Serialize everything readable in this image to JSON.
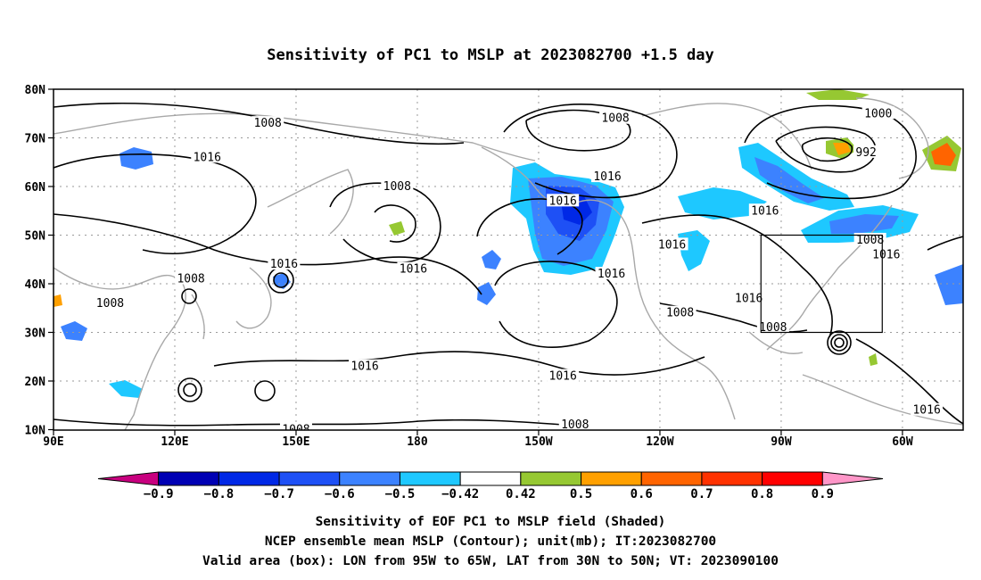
{
  "title": "Sensitivity of PC1 to MSLP at 2023082700 +1.5 day",
  "map": {
    "lat_labels": [
      "80N",
      "70N",
      "60N",
      "50N",
      "40N",
      "30N",
      "20N",
      "10N"
    ],
    "lon_labels": [
      "90E",
      "120E",
      "150E",
      "180",
      "150W",
      "120W",
      "90W",
      "60W"
    ],
    "valid_box": {
      "lon_from": "95W",
      "lon_to": "65W",
      "lat_from": "30N",
      "lat_to": "50N"
    },
    "contour_labels": [
      {
        "text": "1008",
        "lon": 143,
        "lat": 73
      },
      {
        "text": "1016",
        "lon": 128,
        "lat": 66
      },
      {
        "text": "1008",
        "lon": 175,
        "lat": 60
      },
      {
        "text": "1008",
        "lon": 229,
        "lat": 74
      },
      {
        "text": "1016",
        "lon": 227,
        "lat": 62
      },
      {
        "text": "1016",
        "lon": 216,
        "lat": 57
      },
      {
        "text": "1000",
        "lon": 294,
        "lat": 75
      },
      {
        "text": "992",
        "lon": 291,
        "lat": 67
      },
      {
        "text": "1016",
        "lon": 266,
        "lat": 55
      },
      {
        "text": "1008",
        "lon": 292,
        "lat": 49
      },
      {
        "text": "1016",
        "lon": 296,
        "lat": 46
      },
      {
        "text": "1016",
        "lon": 147,
        "lat": 44
      },
      {
        "text": "1008",
        "lon": 124,
        "lat": 41
      },
      {
        "text": "1008",
        "lon": 104,
        "lat": 36
      },
      {
        "text": "1016",
        "lon": 179,
        "lat": 43
      },
      {
        "text": "1016",
        "lon": 243,
        "lat": 48
      },
      {
        "text": "1016",
        "lon": 228,
        "lat": 42
      },
      {
        "text": "1016",
        "lon": 262,
        "lat": 37
      },
      {
        "text": "1008",
        "lon": 245,
        "lat": 34
      },
      {
        "text": "1008",
        "lon": 268,
        "lat": 31
      },
      {
        "text": "1016",
        "lon": 167,
        "lat": 23
      },
      {
        "text": "1016",
        "lon": 216,
        "lat": 21
      },
      {
        "text": "1008",
        "lon": 150,
        "lat": 10
      },
      {
        "text": "1008",
        "lon": 219,
        "lat": 11
      },
      {
        "text": "1016",
        "lon": 306,
        "lat": 14
      }
    ]
  },
  "colorbar": {
    "labels": [
      "−0.9",
      "−0.8",
      "−0.7",
      "−0.6",
      "−0.5",
      "−0.42",
      "0.42",
      "0.5",
      "0.6",
      "0.7",
      "0.8",
      "0.9"
    ],
    "colors": [
      "#c8007f",
      "#0000b4",
      "#0028e6",
      "#1e50f5",
      "#3c82ff",
      "#1ec8ff",
      "#ffffff",
      "#96c832",
      "#ffa000",
      "#ff6400",
      "#ff3200",
      "#ff0000",
      "#ff96c8"
    ]
  },
  "footer": {
    "line1": "Sensitivity of EOF PC1 to MSLP field (Shaded)",
    "line2": "NCEP ensemble mean MSLP (Contour); unit(mb); IT:2023082700",
    "line3": "Valid area (box): LON from 95W to 65W, LAT from 30N to 50N; VT: 2023090100"
  }
}
